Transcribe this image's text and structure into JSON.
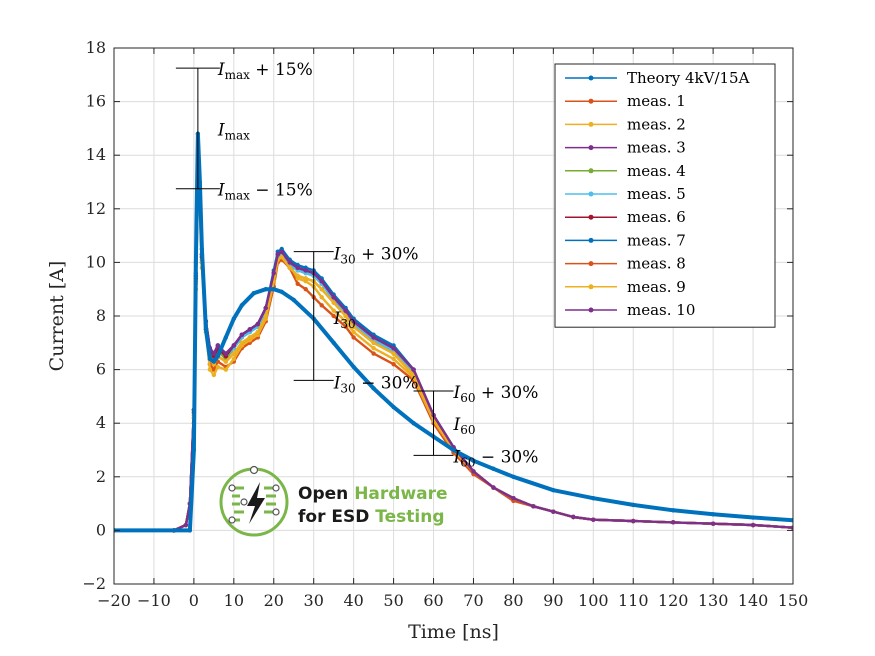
{
  "chart_data": {
    "type": "line",
    "xlabel": "Time [ns]",
    "ylabel": "Current [A]",
    "xlim": [
      -20,
      150
    ],
    "ylim": [
      -2,
      18
    ],
    "xticks": [
      -20,
      -10,
      0,
      10,
      20,
      30,
      40,
      50,
      60,
      70,
      80,
      90,
      100,
      110,
      120,
      130,
      140,
      150
    ],
    "yticks": [
      -2,
      0,
      2,
      4,
      6,
      8,
      10,
      12,
      14,
      16,
      18
    ],
    "xtick_labels": [
      "−20",
      "−10",
      "0",
      "10",
      "20",
      "30",
      "40",
      "50",
      "60",
      "70",
      "80",
      "90",
      "100",
      "110",
      "120",
      "130",
      "140",
      "150"
    ],
    "ytick_labels": [
      "−2",
      "0",
      "2",
      "4",
      "6",
      "8",
      "10",
      "12",
      "14",
      "16",
      "18"
    ],
    "grid": true,
    "legend_position": "top-right",
    "series": [
      {
        "name": "Theory 4kV/15A",
        "color": "#0072BD",
        "x": [
          -20,
          -1,
          0,
          0.5,
          1,
          1.5,
          2,
          3,
          4,
          5,
          6,
          8,
          10,
          12,
          15,
          18,
          20,
          22,
          25,
          30,
          35,
          40,
          45,
          50,
          55,
          60,
          65,
          70,
          75,
          80,
          90,
          100,
          110,
          120,
          130,
          140,
          150
        ],
        "y": [
          0,
          0,
          3,
          10,
          14.8,
          13,
          10.5,
          7.5,
          6.4,
          6.3,
          6.5,
          7.2,
          7.9,
          8.4,
          8.85,
          9.0,
          9.0,
          8.9,
          8.6,
          7.9,
          7.0,
          6.1,
          5.3,
          4.6,
          4.0,
          3.5,
          3.0,
          2.6,
          2.3,
          2.0,
          1.5,
          1.2,
          0.95,
          0.75,
          0.6,
          0.48,
          0.38
        ]
      },
      {
        "name": "meas. 1",
        "color": "#D95319",
        "x": [
          -20,
          -5,
          -2,
          -1,
          0,
          0.5,
          1,
          1.5,
          2,
          3,
          4,
          5,
          6,
          8,
          10,
          12,
          14,
          16,
          18,
          20,
          21,
          22,
          24,
          26,
          28,
          30,
          32,
          35,
          38,
          40,
          45,
          50,
          55,
          60,
          65,
          70,
          75,
          80,
          85,
          90,
          95,
          100,
          110,
          120,
          130,
          140,
          150
        ],
        "y": [
          0,
          0,
          0.2,
          1,
          4,
          9,
          12.8,
          12,
          10,
          7.5,
          6.2,
          6.0,
          6.3,
          6.1,
          6.3,
          6.8,
          7.0,
          7.2,
          7.8,
          9.1,
          10.0,
          10.1,
          9.8,
          9.2,
          9.0,
          8.7,
          8.4,
          8.0,
          7.6,
          7.2,
          6.6,
          6.2,
          5.6,
          4.0,
          2.9,
          2.1,
          1.6,
          1.1,
          0.9,
          0.7,
          0.5,
          0.4,
          0.35,
          0.3,
          0.25,
          0.2,
          0.1
        ]
      },
      {
        "name": "meas. 2",
        "color": "#EDB120",
        "x": [
          -20,
          -5,
          -2,
          -1,
          0,
          0.5,
          1,
          1.5,
          2,
          3,
          4,
          5,
          6,
          8,
          10,
          12,
          14,
          16,
          18,
          20,
          21,
          22,
          24,
          26,
          28,
          30,
          32,
          35,
          38,
          40,
          45,
          50,
          55,
          60,
          65,
          70,
          75,
          80,
          85,
          90,
          95,
          100,
          110,
          120,
          130,
          140,
          150
        ],
        "y": [
          0,
          0,
          0.2,
          1,
          4,
          9,
          12.5,
          11.8,
          9.8,
          7.4,
          6.0,
          5.8,
          6.1,
          6.0,
          6.4,
          6.9,
          7.1,
          7.3,
          7.9,
          9.3,
          10.1,
          10.2,
          9.9,
          9.4,
          9.3,
          9.1,
          8.7,
          8.2,
          7.8,
          7.4,
          6.8,
          6.4,
          5.7,
          4.1,
          3.0,
          2.2,
          1.6,
          1.2,
          0.9,
          0.7,
          0.5,
          0.4,
          0.35,
          0.3,
          0.25,
          0.2,
          0.1
        ]
      },
      {
        "name": "meas. 3",
        "color": "#7E2F8E",
        "x": [
          -20,
          -5,
          -2,
          -1,
          0,
          0.5,
          1,
          1.5,
          2,
          3,
          4,
          5,
          6,
          8,
          10,
          12,
          14,
          16,
          18,
          20,
          21,
          22,
          24,
          26,
          28,
          30,
          32,
          35,
          38,
          40,
          45,
          50,
          55,
          60,
          65,
          70,
          75,
          80,
          85,
          90,
          95,
          100,
          110,
          120,
          130,
          140,
          150
        ],
        "y": [
          0,
          0,
          0.2,
          1,
          4.5,
          9.5,
          13.5,
          12.5,
          10.3,
          7.8,
          6.8,
          6.6,
          6.9,
          6.5,
          6.9,
          7.3,
          7.5,
          7.7,
          8.3,
          9.6,
          10.3,
          10.4,
          10.0,
          9.8,
          9.7,
          9.6,
          9.3,
          8.7,
          8.2,
          7.8,
          7.2,
          6.8,
          6.0,
          4.3,
          3.1,
          2.2,
          1.6,
          1.2,
          0.9,
          0.7,
          0.5,
          0.4,
          0.35,
          0.3,
          0.25,
          0.2,
          0.1
        ]
      },
      {
        "name": "meas. 4",
        "color": "#77AC30",
        "x": [
          -20,
          -5,
          -2,
          -1,
          0,
          0.5,
          1,
          1.5,
          2,
          3,
          4,
          5,
          6,
          8,
          10,
          12,
          14,
          16,
          18,
          20,
          21,
          22,
          24,
          26,
          28,
          30,
          32,
          35,
          38,
          40,
          45,
          50,
          55,
          60,
          65,
          70,
          75,
          80,
          85,
          90,
          95,
          100,
          110,
          120,
          130,
          140,
          150
        ],
        "y": [
          0,
          0,
          0.2,
          1,
          4.3,
          9.3,
          13.2,
          12.3,
          10.1,
          7.7,
          6.6,
          6.4,
          6.7,
          6.4,
          6.8,
          7.2,
          7.4,
          7.6,
          8.2,
          9.5,
          10.2,
          10.3,
          9.9,
          9.7,
          9.6,
          9.5,
          9.2,
          8.6,
          8.1,
          7.7,
          7.1,
          6.7,
          5.9,
          4.2,
          3.1,
          2.2,
          1.6,
          1.2,
          0.9,
          0.7,
          0.5,
          0.4,
          0.35,
          0.3,
          0.25,
          0.2,
          0.1
        ]
      },
      {
        "name": "meas. 5",
        "color": "#4DBEEE",
        "x": [
          -20,
          -5,
          -2,
          -1,
          0,
          0.5,
          1,
          1.5,
          2,
          3,
          4,
          5,
          6,
          8,
          10,
          12,
          14,
          16,
          18,
          20,
          21,
          22,
          24,
          26,
          28,
          30,
          32,
          35,
          38,
          40,
          45,
          50,
          55,
          60,
          65,
          70,
          75,
          80,
          85,
          90,
          95,
          100,
          110,
          120,
          130,
          140,
          150
        ],
        "y": [
          0,
          0,
          0.2,
          1,
          4.4,
          9.4,
          13.3,
          12.4,
          10.2,
          7.7,
          6.7,
          6.5,
          6.8,
          6.5,
          6.8,
          7.2,
          7.4,
          7.6,
          8.2,
          9.5,
          10.2,
          10.3,
          9.9,
          9.7,
          9.6,
          9.5,
          9.2,
          8.6,
          8.1,
          7.7,
          7.1,
          6.7,
          5.9,
          4.2,
          3.1,
          2.2,
          1.6,
          1.2,
          0.9,
          0.7,
          0.5,
          0.4,
          0.35,
          0.3,
          0.25,
          0.2,
          0.1
        ]
      },
      {
        "name": "meas. 6",
        "color": "#A2142F",
        "x": [
          -20,
          -5,
          -2,
          -1,
          0,
          0.5,
          1,
          1.5,
          2,
          3,
          4,
          5,
          6,
          8,
          10,
          12,
          14,
          16,
          18,
          20,
          21,
          22,
          24,
          26,
          28,
          30,
          32,
          35,
          38,
          40,
          45,
          50,
          55,
          60,
          65,
          70,
          75,
          80,
          85,
          90,
          95,
          100,
          110,
          120,
          130,
          140,
          150
        ],
        "y": [
          0,
          0,
          0.2,
          1,
          4.4,
          9.4,
          13.4,
          12.4,
          10.2,
          7.8,
          6.7,
          6.5,
          6.8,
          6.5,
          6.9,
          7.3,
          7.5,
          7.7,
          8.3,
          9.6,
          10.3,
          10.4,
          10.0,
          9.8,
          9.7,
          9.6,
          9.3,
          8.7,
          8.2,
          7.8,
          7.2,
          6.8,
          6.0,
          4.3,
          3.1,
          2.2,
          1.6,
          1.2,
          0.9,
          0.7,
          0.5,
          0.4,
          0.35,
          0.3,
          0.25,
          0.2,
          0.1
        ]
      },
      {
        "name": "meas. 7",
        "color": "#0072BD",
        "x": [
          -20,
          -5,
          -2,
          -1,
          0,
          0.5,
          1,
          1.5,
          2,
          3,
          4,
          5,
          6,
          8,
          10,
          12,
          14,
          16,
          18,
          20,
          21,
          22,
          24,
          26,
          28,
          30,
          32,
          35,
          38,
          40,
          45,
          50,
          55,
          60,
          65,
          70,
          75,
          80,
          85,
          90,
          95,
          100,
          110,
          120,
          130,
          140,
          150
        ],
        "y": [
          0,
          0,
          0.2,
          1,
          4.5,
          9.6,
          13.6,
          12.6,
          10.3,
          7.8,
          6.8,
          6.6,
          6.9,
          6.6,
          6.9,
          7.3,
          7.5,
          7.7,
          8.3,
          9.7,
          10.4,
          10.5,
          10.1,
          9.9,
          9.8,
          9.7,
          9.4,
          8.8,
          8.3,
          7.9,
          7.3,
          6.9,
          6.0,
          4.3,
          3.1,
          2.2,
          1.6,
          1.2,
          0.9,
          0.7,
          0.5,
          0.4,
          0.35,
          0.3,
          0.25,
          0.2,
          0.1
        ]
      },
      {
        "name": "meas. 8",
        "color": "#D95319",
        "x": [
          -20,
          -5,
          -2,
          -1,
          0,
          0.5,
          1,
          1.5,
          2,
          3,
          4,
          5,
          6,
          8,
          10,
          12,
          14,
          16,
          18,
          20,
          21,
          22,
          24,
          26,
          28,
          30,
          32,
          35,
          38,
          40,
          45,
          50,
          55,
          60,
          65,
          70,
          75,
          80,
          85,
          90,
          95,
          100,
          110,
          120,
          130,
          140,
          150
        ],
        "y": [
          0,
          0,
          0.2,
          1,
          4.2,
          9.2,
          13.0,
          12.1,
          10.0,
          7.6,
          6.4,
          6.2,
          6.5,
          6.3,
          6.6,
          7.0,
          7.2,
          7.4,
          8.0,
          9.3,
          10.1,
          10.2,
          9.8,
          9.5,
          9.4,
          9.3,
          9.0,
          8.5,
          8.0,
          7.6,
          7.0,
          6.6,
          5.8,
          4.2,
          3.0,
          2.2,
          1.6,
          1.2,
          0.9,
          0.7,
          0.5,
          0.4,
          0.35,
          0.3,
          0.25,
          0.2,
          0.1
        ]
      },
      {
        "name": "meas. 9",
        "color": "#EDB120",
        "x": [
          -20,
          -5,
          -2,
          -1,
          0,
          0.5,
          1,
          1.5,
          2,
          3,
          4,
          5,
          6,
          8,
          10,
          12,
          14,
          16,
          18,
          20,
          21,
          22,
          24,
          26,
          28,
          30,
          32,
          35,
          38,
          40,
          45,
          50,
          55,
          60,
          65,
          70,
          75,
          80,
          85,
          90,
          95,
          100,
          110,
          120,
          130,
          140,
          150
        ],
        "y": [
          0,
          0,
          0.2,
          1,
          4.2,
          9.2,
          13.0,
          12.1,
          10.0,
          7.6,
          6.4,
          6.2,
          6.5,
          6.3,
          6.6,
          7.0,
          7.2,
          7.4,
          8.0,
          9.3,
          10.1,
          10.2,
          9.8,
          9.5,
          9.4,
          9.3,
          9.0,
          8.5,
          8.0,
          7.6,
          7.0,
          6.6,
          5.8,
          4.2,
          3.0,
          2.2,
          1.6,
          1.2,
          0.9,
          0.7,
          0.5,
          0.4,
          0.35,
          0.3,
          0.25,
          0.2,
          0.1
        ]
      },
      {
        "name": "meas. 10",
        "color": "#7E2F8E",
        "x": [
          -20,
          -5,
          -2,
          -1,
          0,
          0.5,
          1,
          1.5,
          2,
          3,
          4,
          5,
          6,
          8,
          10,
          12,
          14,
          16,
          18,
          20,
          21,
          22,
          24,
          26,
          28,
          30,
          32,
          35,
          38,
          40,
          45,
          50,
          55,
          60,
          65,
          70,
          75,
          80,
          85,
          90,
          95,
          100,
          110,
          120,
          130,
          140,
          150
        ],
        "y": [
          0,
          0,
          0.2,
          1,
          4.5,
          9.5,
          13.5,
          12.5,
          10.3,
          7.8,
          6.8,
          6.6,
          6.9,
          6.6,
          6.9,
          7.3,
          7.5,
          7.7,
          8.3,
          9.6,
          10.3,
          10.4,
          10.0,
          9.8,
          9.7,
          9.6,
          9.3,
          8.7,
          8.2,
          7.8,
          7.2,
          6.8,
          6.0,
          4.3,
          3.1,
          2.2,
          1.6,
          1.2,
          0.9,
          0.7,
          0.5,
          0.4,
          0.35,
          0.3,
          0.25,
          0.2,
          0.1
        ]
      }
    ],
    "annotations": {
      "imax_plus": {
        "base": "I",
        "sub": "max",
        "suffix": " + 15%",
        "t": 1,
        "y": 17.25
      },
      "imax": {
        "base": "I",
        "sub": "max",
        "suffix": "",
        "t": 1,
        "y": 15
      },
      "imax_minus": {
        "base": "I",
        "sub": "max",
        "suffix": " − 15%",
        "t": 1,
        "y": 12.75
      },
      "i30_plus": {
        "base": "I",
        "sub": "30",
        "suffix": " + 30%",
        "t": 30,
        "y": 10.4
      },
      "i30": {
        "base": "I",
        "sub": "30",
        "suffix": "",
        "t": 30,
        "y": 8
      },
      "i30_minus": {
        "base": "I",
        "sub": "30",
        "suffix": " − 30%",
        "t": 30,
        "y": 5.6
      },
      "i60_plus": {
        "base": "I",
        "sub": "60",
        "suffix": " + 30%",
        "t": 60,
        "y": 5.2
      },
      "i60": {
        "base": "I",
        "sub": "60",
        "suffix": "",
        "t": 60,
        "y": 4
      },
      "i60_minus": {
        "base": "I",
        "sub": "60",
        "suffix": " − 30%",
        "t": 60,
        "y": 2.8
      }
    }
  },
  "logo": {
    "line1_a": "Open",
    "line1_b": "Hardware",
    "line2_a": "for ESD",
    "line2_b": "Testing",
    "icon": "lightning-circuit-icon",
    "dark_color": "#1a1a1a",
    "green_color": "#7ab648"
  }
}
